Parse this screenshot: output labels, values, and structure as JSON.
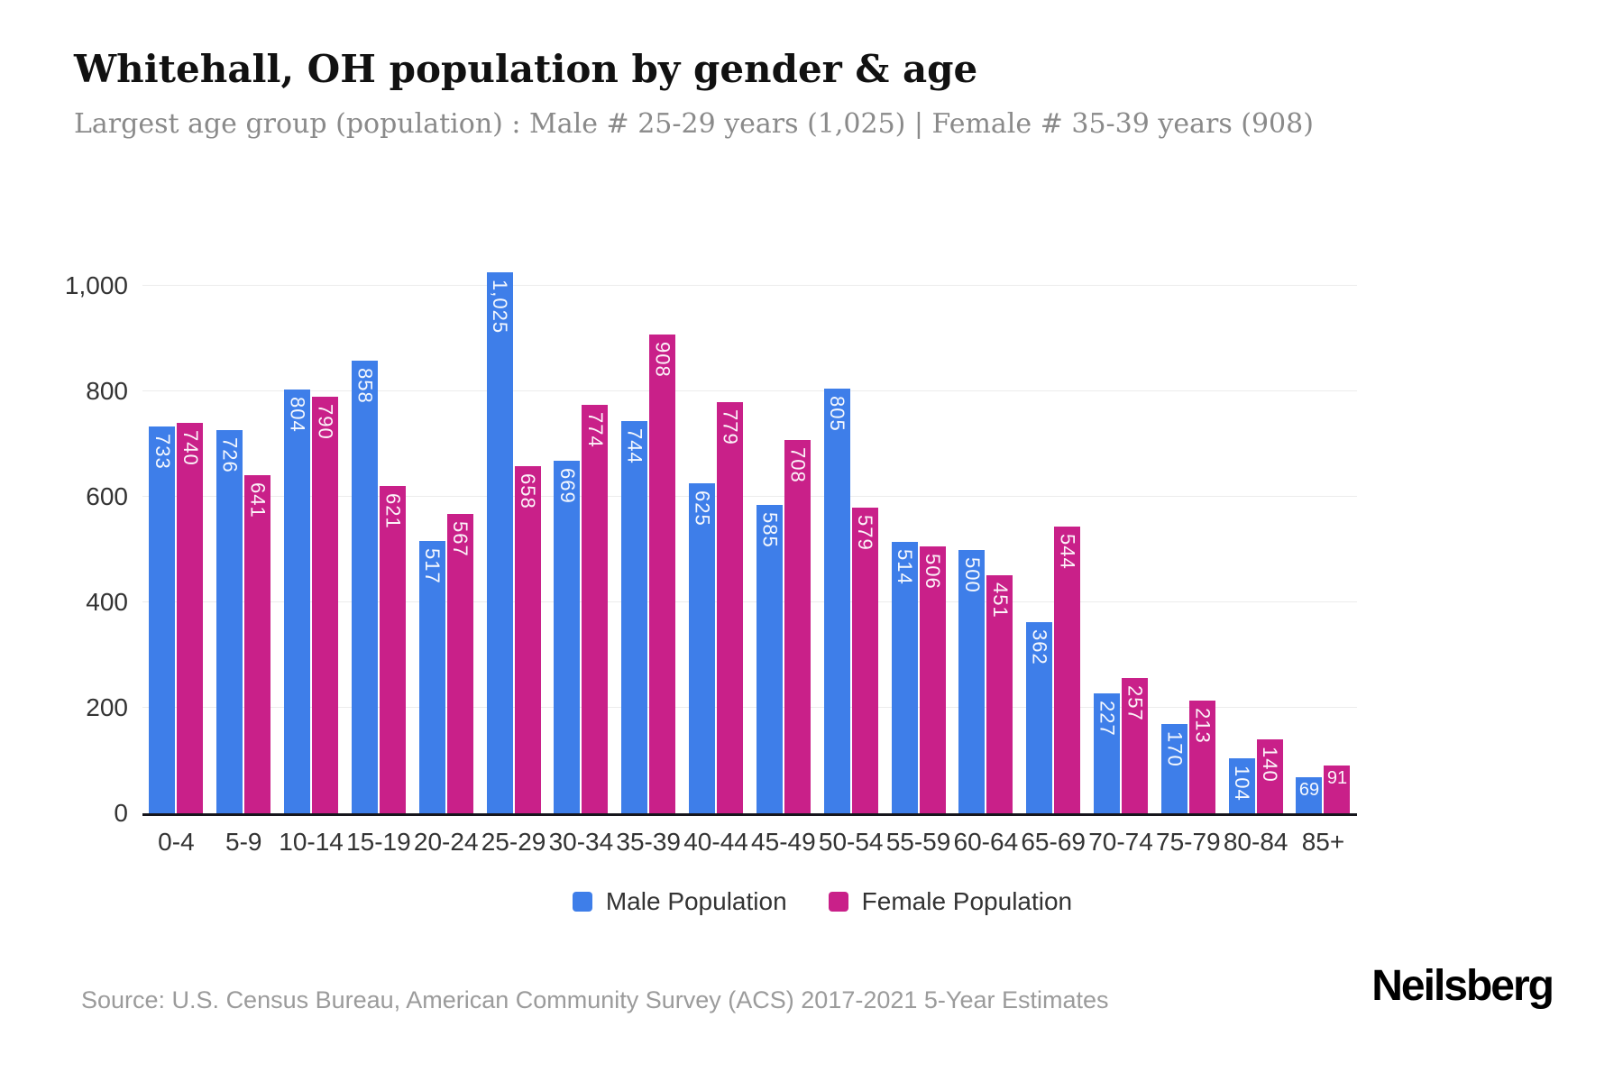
{
  "header": {
    "title": "Whitehall, OH population by gender & age",
    "subtitle": "Largest age group (population) : Male # 25-29 years (1,025) | Female # 35-39 years (908)"
  },
  "chart_data": {
    "type": "bar",
    "title": "Whitehall, OH population by gender & age",
    "categories": [
      "0-4",
      "5-9",
      "10-14",
      "15-19",
      "20-24",
      "25-29",
      "30-34",
      "35-39",
      "40-44",
      "45-49",
      "50-54",
      "55-59",
      "60-64",
      "65-69",
      "70-74",
      "75-79",
      "80-84",
      "85+"
    ],
    "series": [
      {
        "name": "Male Population",
        "color": "#3e7ee9",
        "values": [
          733,
          726,
          804,
          858,
          517,
          1025,
          669,
          744,
          625,
          585,
          805,
          514,
          500,
          362,
          227,
          170,
          104,
          69
        ]
      },
      {
        "name": "Female Population",
        "color": "#c92089",
        "values": [
          740,
          641,
          790,
          621,
          567,
          658,
          774,
          908,
          779,
          708,
          579,
          506,
          451,
          544,
          257,
          213,
          140,
          91
        ]
      }
    ],
    "xlabel": "",
    "ylabel": "",
    "ylim": [
      0,
      1060
    ],
    "yticks": [
      0,
      200,
      400,
      600,
      800,
      1000
    ],
    "grid": true,
    "legend_position": "bottom",
    "value_labels_shown": true,
    "value_label_rotation": "vertical-above-100-horizontal-below-100"
  },
  "footer": {
    "source": "Source: U.S. Census Bureau, American Community Survey (ACS) 2017-2021 5-Year Estimates",
    "brand": "Neilsberg"
  },
  "colors": {
    "male": "#3e7ee9",
    "female": "#c92089",
    "gridline": "#ececec",
    "axis_line": "#16161d",
    "tick_text": "#333333",
    "title_text": "#111111",
    "subtitle_text": "#8a8a8a",
    "source_text": "#9b9b9b"
  }
}
